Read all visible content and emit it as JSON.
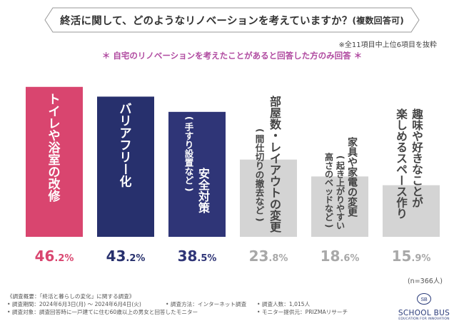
{
  "title": {
    "main": "終活に関して、どのようなリノベーションを考えていますか？",
    "sub": "(複数回答可)"
  },
  "note": "※全11項目中上位6項目を抜粋",
  "subtitle": "＊ 自宅のリノベーションを考えたことがあると回答した方のみ回答 ＊",
  "chart_data": {
    "type": "bar",
    "categories": [
      {
        "main": "トイレや浴室の改修",
        "sub": ""
      },
      {
        "main": "バリアフリー化",
        "sub": ""
      },
      {
        "main": "安全対策",
        "sub": "(手すり設置など)"
      },
      {
        "main": "部屋数・レイアウトの変更",
        "sub": "(間仕切りの撤去など)"
      },
      {
        "main": "家具や家電の変更",
        "sub": "(起き上がりやすい高さのベッドなど)"
      },
      {
        "main": "趣味や好きなことが楽しめるスペース作り",
        "sub": ""
      }
    ],
    "values": [
      46.2,
      43.2,
      38.5,
      23.8,
      18.6,
      15.9
    ],
    "unit": "%",
    "ylim": [
      0,
      50
    ],
    "colors": [
      "#d9456f",
      "#27306d",
      "#2f3577",
      "#d4d4d4",
      "#d4d4d4",
      "#d4d4d4"
    ],
    "value_colors": [
      "#d9456f",
      "#27306d",
      "#2f3577",
      "#a8a8a8",
      "#a8a8a8",
      "#a8a8a8"
    ],
    "label_colors": [
      "#ffffff",
      "#ffffff",
      "#ffffff",
      "#444444",
      "#444444",
      "#444444"
    ]
  },
  "n_label": "(n=366人)",
  "footer": {
    "heading": "《調査概要：「終活と暮らしの変化」に関する調査》",
    "period": "• 調査期間：2024年6月3日(月) ～ 2024年6月4日(火)",
    "method": "• 調査方法：インターネット調査",
    "count": "• 調査人数：1,015人",
    "target": "• 調査対象：調査回答時に一戸建てに住む60歳以上の男女と回答したモニター",
    "provider": "• モニター提供元：PRIZMAリサーチ"
  },
  "logo": {
    "mark": "SB",
    "name": "SCHOOL BUS",
    "tagline": "EDUCATION FOR INNOVATION"
  }
}
